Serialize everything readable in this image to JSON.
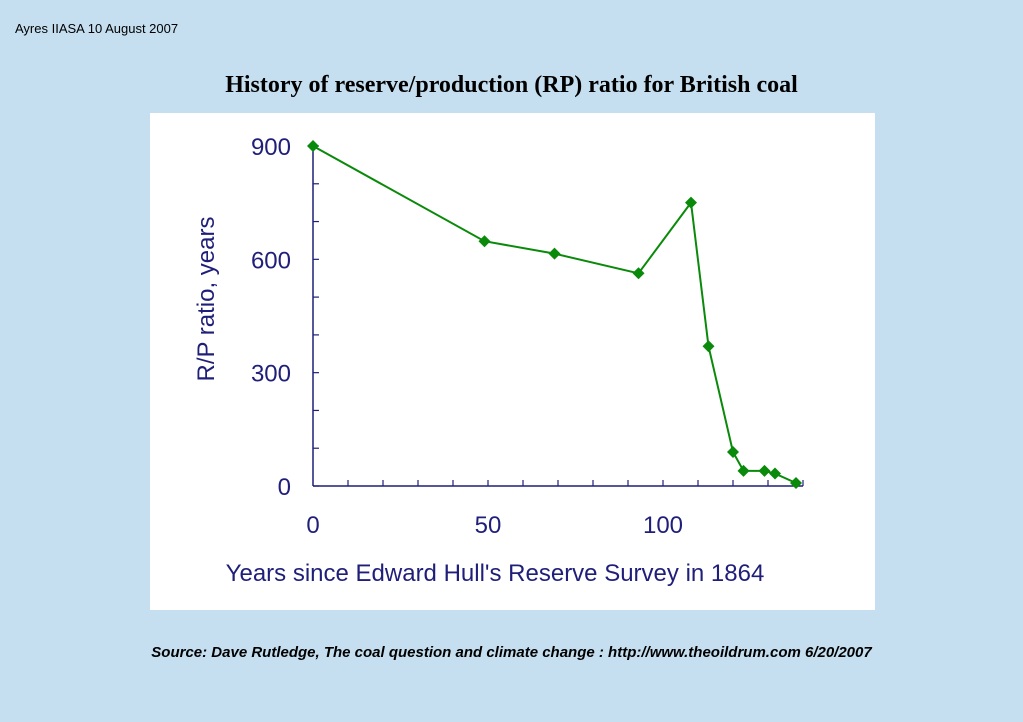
{
  "header": {
    "note": "Ayres IIASA 10 August 2007"
  },
  "title": "History of reserve/production (RP) ratio for British coal",
  "source": "Source: Dave Rutledge, The coal question and climate change : http://www.theoildrum.com 6/20/2007",
  "colors": {
    "background": "#c5dff0",
    "series": "#0a8a0a",
    "axis": "#1f1f7a"
  },
  "chart_data": {
    "type": "line",
    "title": "History of reserve/production (RP) ratio for British coal",
    "xlabel": "Years since Edward Hull's Reserve Survey in 1864",
    "ylabel": "R/P ratio, years",
    "xlim": [
      0,
      140
    ],
    "ylim": [
      0,
      900
    ],
    "xticks": [
      0,
      50,
      100
    ],
    "yticks": [
      0,
      300,
      600,
      900
    ],
    "x_minor_step": 10,
    "y_minor_step": 100,
    "grid": false,
    "marker": "diamond",
    "series": [
      {
        "x": [
          0,
          49,
          69,
          93,
          108,
          113,
          120,
          123,
          129,
          132,
          138
        ],
        "y": [
          900,
          648,
          615,
          563,
          750,
          370,
          90,
          40,
          40,
          33,
          8
        ]
      }
    ]
  }
}
